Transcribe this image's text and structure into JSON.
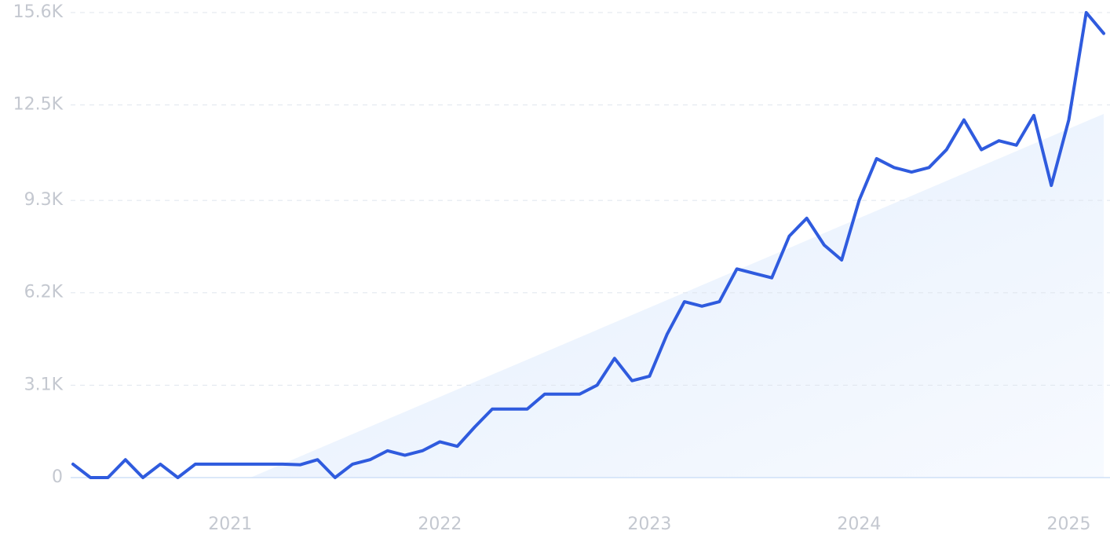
{
  "chart_data": {
    "type": "line",
    "color": "#2f5bde",
    "grid": true,
    "x": [
      2020.25,
      2020.3333,
      2020.4167,
      2020.5,
      2020.5833,
      2020.6667,
      2020.75,
      2020.8333,
      2020.9167,
      2021,
      2021.0833,
      2021.1667,
      2021.25,
      2021.3333,
      2021.4167,
      2021.5,
      2021.5833,
      2021.6667,
      2021.75,
      2021.8333,
      2021.9167,
      2022,
      2022.0833,
      2022.1667,
      2022.25,
      2022.3333,
      2022.4167,
      2022.5,
      2022.5833,
      2022.6667,
      2022.75,
      2022.8333,
      2022.9167,
      2023,
      2023.0833,
      2023.1667,
      2023.25,
      2023.3333,
      2023.4167,
      2023.5,
      2023.5833,
      2023.6667,
      2023.75,
      2023.8333,
      2023.9167,
      2024,
      2024.0833,
      2024.1667,
      2024.25,
      2024.3333,
      2024.4167,
      2024.5,
      2024.5833,
      2024.6667,
      2024.75,
      2024.8333,
      2024.9167,
      2025,
      2025.0833,
      2025.1667
    ],
    "values": [
      450,
      0,
      0,
      600,
      0,
      450,
      0,
      450,
      450,
      450,
      450,
      450,
      450,
      430,
      600,
      0,
      450,
      600,
      900,
      750,
      900,
      1200,
      1050,
      1700,
      2300,
      2300,
      2300,
      2800,
      2800,
      2800,
      3100,
      4000,
      3250,
      3400,
      4800,
      5900,
      5750,
      5900,
      7000,
      6850,
      6700,
      8100,
      8700,
      7800,
      7300,
      9300,
      10700,
      10400,
      10250,
      10400,
      11000,
      12000,
      11000,
      11300,
      11150,
      12150,
      9800,
      12000,
      15600,
      14900
    ],
    "trend": {
      "x": [
        2021.097,
        2025.1667
      ],
      "values": [
        0,
        12200
      ]
    },
    "xlim": [
      2020.25,
      2025.1667
    ],
    "xticks": [
      2021,
      2022,
      2023,
      2024,
      2025
    ],
    "ylim": [
      0,
      15600
    ],
    "yticks": [
      0,
      {
        "value": 3100,
        "label": "3.1K"
      },
      {
        "value": 6200,
        "label": "6.2K"
      },
      {
        "value": 9300,
        "label": "9.3K"
      },
      {
        "value": 12500,
        "label": "12.5K"
      },
      {
        "value": 15600,
        "label": "15.6K"
      }
    ]
  }
}
